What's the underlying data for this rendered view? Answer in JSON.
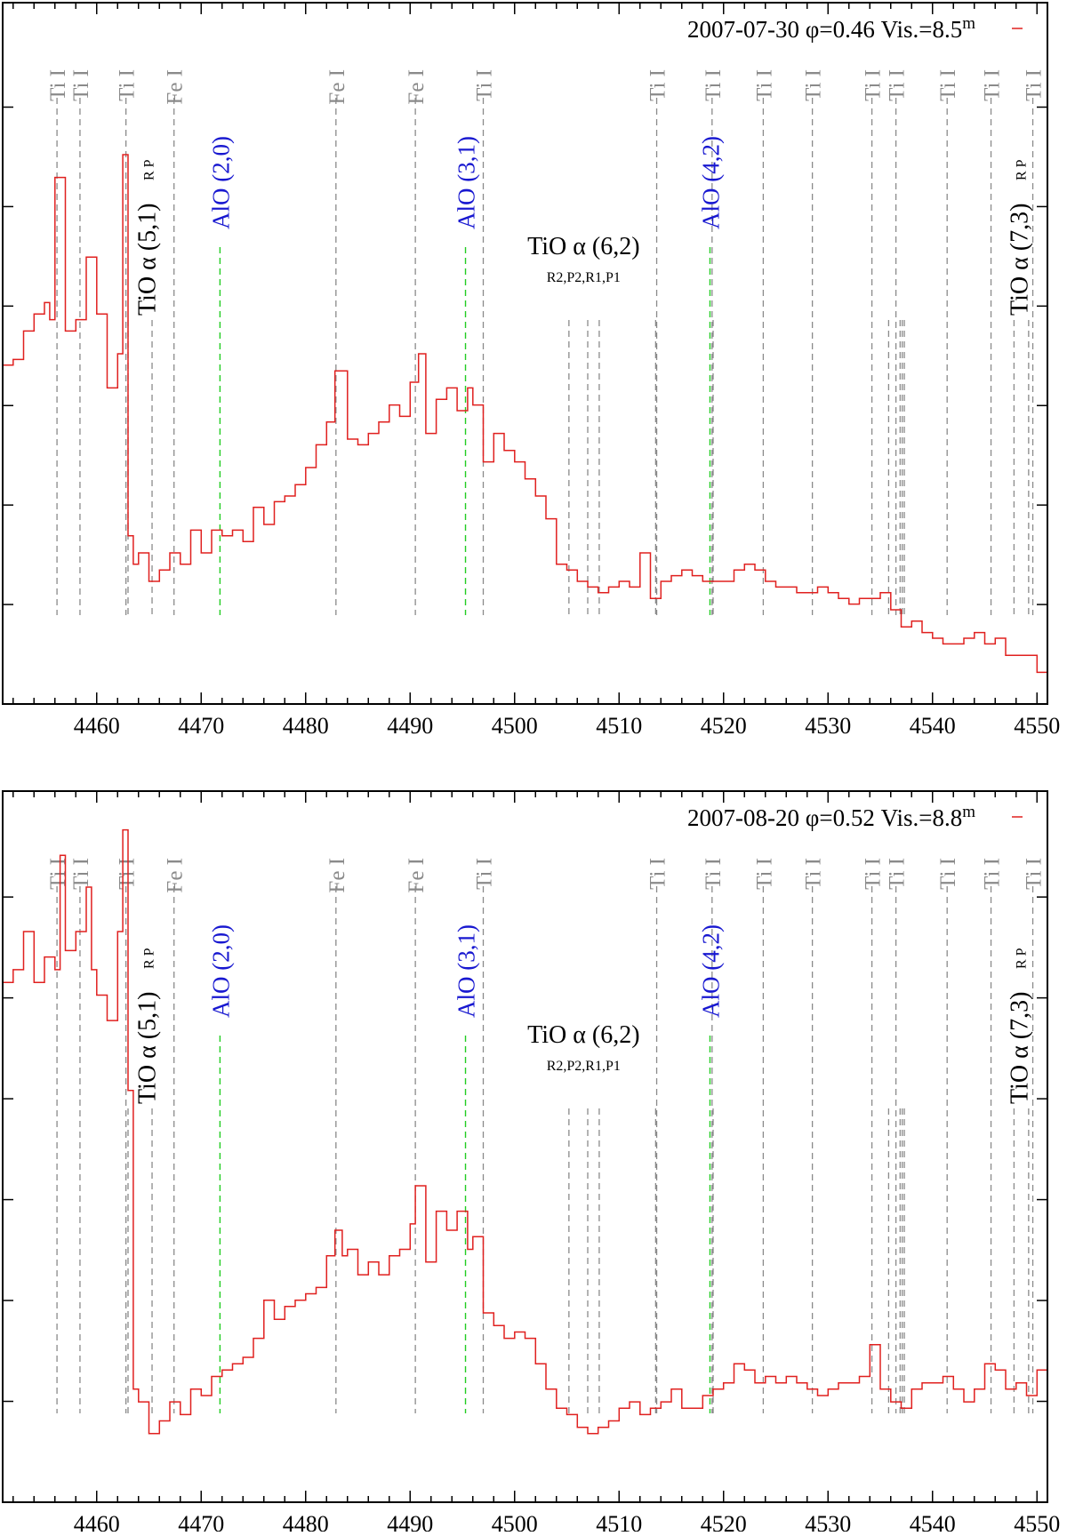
{
  "colors": {
    "spectrum": "#e0201f",
    "element_line": "#8a8a8a",
    "alo_line": "#22cc22",
    "alo_label": "#1818d0",
    "axis": "#000000"
  },
  "chart_data": [
    {
      "type": "line",
      "legend": {
        "date": "2007-07-30",
        "phase": "φ=0.46",
        "vis_prefix": "Vis.=8.5",
        "vis_sup": "m"
      },
      "xlim": [
        4451,
        4551
      ],
      "ylim": [
        0,
        1
      ],
      "x_ticks": [
        4460,
        4470,
        4480,
        4490,
        4500,
        4510,
        4520,
        4530,
        4540,
        4550
      ],
      "x_tick_labels": [
        "4460",
        "4470",
        "4480",
        "4490",
        "4500",
        "4510",
        "4520",
        "4530",
        "4540",
        "4550"
      ],
      "series": [
        {
          "name": "2007-07-30 φ=0.46 Vis.=8.5m",
          "x": [
            4451,
            4452,
            4453,
            4454,
            4455,
            4455.5,
            4456,
            4457,
            4458,
            4459,
            4460,
            4461,
            4462,
            4462.5,
            4463,
            4463.5,
            4464,
            4465,
            4466,
            4467,
            4468,
            4469,
            4470,
            4471,
            4472,
            4473,
            4474,
            4475,
            4476,
            4477,
            4478,
            4479,
            4480,
            4481,
            4482,
            4482.8,
            4484,
            4485,
            4486,
            4487,
            4488,
            4489,
            4490,
            4490.8,
            4491.5,
            4492.5,
            4493.5,
            4494.5,
            4495.5,
            4496,
            4497,
            4498,
            4499,
            4500,
            4501,
            4502,
            4503,
            4504,
            4505,
            4506,
            4507,
            4508,
            4509,
            4510,
            4511,
            4512,
            4513,
            4514,
            4515,
            4516,
            4517,
            4518,
            4519,
            4520,
            4521,
            4522,
            4523,
            4524,
            4525,
            4526,
            4527,
            4528,
            4529,
            4530,
            4531,
            4532,
            4533,
            4534,
            4535,
            4536,
            4537,
            4538,
            4539,
            4540,
            4541,
            4542,
            4543,
            4544,
            4545,
            4546,
            4547,
            4548,
            4549,
            4550,
            4551
          ],
          "values": [
            0.53,
            0.54,
            0.59,
            0.62,
            0.64,
            0.61,
            0.86,
            0.59,
            0.61,
            0.72,
            0.62,
            0.49,
            0.55,
            0.9,
            0.23,
            0.18,
            0.2,
            0.15,
            0.17,
            0.2,
            0.18,
            0.24,
            0.2,
            0.24,
            0.23,
            0.24,
            0.22,
            0.28,
            0.25,
            0.29,
            0.3,
            0.32,
            0.35,
            0.39,
            0.43,
            0.52,
            0.4,
            0.39,
            0.41,
            0.43,
            0.46,
            0.44,
            0.5,
            0.55,
            0.41,
            0.47,
            0.49,
            0.45,
            0.49,
            0.46,
            0.36,
            0.41,
            0.38,
            0.36,
            0.33,
            0.3,
            0.26,
            0.18,
            0.17,
            0.15,
            0.14,
            0.13,
            0.14,
            0.15,
            0.14,
            0.2,
            0.12,
            0.15,
            0.16,
            0.17,
            0.16,
            0.15,
            0.15,
            0.15,
            0.17,
            0.18,
            0.17,
            0.15,
            0.14,
            0.14,
            0.13,
            0.13,
            0.14,
            0.13,
            0.12,
            0.11,
            0.12,
            0.12,
            0.13,
            0.1,
            0.07,
            0.08,
            0.06,
            0.05,
            0.04,
            0.04,
            0.05,
            0.06,
            0.04,
            0.05,
            0.02,
            0.02,
            0.02,
            -0.01,
            0.0
          ]
        }
      ],
      "element_lines": [
        {
          "x": 4456.2,
          "label": "Ti I"
        },
        {
          "x": 4458.4,
          "label": "Ti I"
        },
        {
          "x": 4462.8,
          "label": "Ti I"
        },
        {
          "x": 4467.4,
          "label": "Fe I"
        },
        {
          "x": 4482.9,
          "label": "Fe I"
        },
        {
          "x": 4490.5,
          "label": "Fe I"
        },
        {
          "x": 4497,
          "label": "Ti I"
        },
        {
          "x": 4513.6,
          "label": "Ti I"
        },
        {
          "x": 4518.9,
          "label": "Ti I"
        },
        {
          "x": 4523.8,
          "label": "Ti I"
        },
        {
          "x": 4528.5,
          "label": "Ti I"
        },
        {
          "x": 4534.2,
          "label": "Ti I"
        },
        {
          "x": 4536.5,
          "label": "Ti I"
        },
        {
          "x": 4541.4,
          "label": "Ti I"
        },
        {
          "x": 4545.6,
          "label": "Ti I"
        },
        {
          "x": 4549.6,
          "label": "Ti I"
        }
      ],
      "extra_lines": [
        4463,
        4465.3,
        4505.2,
        4507,
        4508.1,
        4513.5,
        4519,
        4535.8,
        4536.9,
        4537.1,
        4537.3,
        4547.8,
        4549.2
      ],
      "alo_bands": [
        {
          "x": 4471.8,
          "label": "AlO (2,0)"
        },
        {
          "x": 4495.3,
          "label": "AlO (3,1)"
        },
        {
          "x": 4518.7,
          "label": "AlO (4,2)"
        }
      ],
      "tio_bands": {
        "left": {
          "label": "TiO α (5,1)",
          "branches": "R P"
        },
        "middle": {
          "label": "TiO α (6,2)",
          "branches": "R2,P2,R1,P1"
        },
        "right": {
          "label": "TiO α (7,3)",
          "branches": "R P"
        }
      }
    },
    {
      "type": "line",
      "legend": {
        "date": "2007-08-20",
        "phase": "φ=0.52",
        "vis_prefix": "Vis.=8.8",
        "vis_sup": "m"
      },
      "xlim": [
        4451,
        4551
      ],
      "ylim": [
        0,
        1
      ],
      "x_ticks": [
        4460,
        4470,
        4480,
        4490,
        4500,
        4510,
        4520,
        4530,
        4540,
        4550
      ],
      "x_tick_labels": [
        "4460",
        "4470",
        "4480",
        "4490",
        "4500",
        "4510",
        "4520",
        "4530",
        "4540",
        "4550"
      ],
      "series": [
        {
          "name": "2007-08-20 φ=0.52 Vis.=8.8m",
          "x": [
            4451,
            4452,
            4453,
            4454,
            4455,
            4456,
            4456.5,
            4457,
            4458,
            4459,
            4459.5,
            4460,
            4461,
            4462,
            4462.5,
            4463,
            4463.5,
            4464,
            4465,
            4466,
            4467,
            4468,
            4469,
            4470,
            4471,
            4472,
            4473,
            4474,
            4475,
            4476,
            4477,
            4478,
            4479,
            4480,
            4481,
            4482,
            4482.8,
            4483.5,
            4484,
            4485,
            4486,
            4487,
            4488,
            4489,
            4490,
            4490.5,
            4491.5,
            4492.5,
            4493.5,
            4494.5,
            4495.5,
            4496,
            4497,
            4498,
            4499,
            4500,
            4501,
            4502,
            4503,
            4504,
            4505,
            4506,
            4507,
            4508,
            4509,
            4510,
            4511,
            4512,
            4513,
            4514,
            4515,
            4516,
            4517,
            4518,
            4519,
            4520,
            4521,
            4522,
            4523,
            4524,
            4525,
            4526,
            4527,
            4528,
            4529,
            4530,
            4531,
            4532,
            4533,
            4534,
            4535,
            4536,
            4537,
            4538,
            4539,
            4540,
            4541,
            4542,
            4543,
            4544,
            4545,
            4546,
            4547,
            4548,
            4549,
            4550,
            4551
          ],
          "values": [
            0.72,
            0.74,
            0.8,
            0.72,
            0.76,
            0.74,
            0.92,
            0.77,
            0.8,
            0.87,
            0.74,
            0.7,
            0.66,
            0.8,
            0.96,
            0.55,
            0.08,
            0.06,
            0.01,
            0.03,
            0.06,
            0.04,
            0.08,
            0.07,
            0.1,
            0.11,
            0.12,
            0.13,
            0.16,
            0.22,
            0.19,
            0.21,
            0.22,
            0.23,
            0.24,
            0.29,
            0.33,
            0.29,
            0.3,
            0.26,
            0.28,
            0.26,
            0.29,
            0.3,
            0.34,
            0.4,
            0.28,
            0.36,
            0.33,
            0.36,
            0.3,
            0.32,
            0.2,
            0.18,
            0.16,
            0.17,
            0.16,
            0.12,
            0.08,
            0.05,
            0.04,
            0.02,
            0.01,
            0.02,
            0.03,
            0.05,
            0.06,
            0.04,
            0.05,
            0.06,
            0.08,
            0.05,
            0.05,
            0.07,
            0.08,
            0.09,
            0.12,
            0.11,
            0.09,
            0.1,
            0.09,
            0.1,
            0.09,
            0.08,
            0.07,
            0.08,
            0.09,
            0.09,
            0.1,
            0.15,
            0.08,
            0.06,
            0.05,
            0.08,
            0.09,
            0.09,
            0.1,
            0.08,
            0.06,
            0.08,
            0.12,
            0.11,
            0.08,
            0.09,
            0.07,
            0.11,
            0.08
          ]
        }
      ],
      "element_lines": [
        {
          "x": 4456.2,
          "label": "Ti I"
        },
        {
          "x": 4458.4,
          "label": "Ti I"
        },
        {
          "x": 4462.8,
          "label": "Ti I"
        },
        {
          "x": 4467.4,
          "label": "Fe I"
        },
        {
          "x": 4482.9,
          "label": "Fe I"
        },
        {
          "x": 4490.5,
          "label": "Fe I"
        },
        {
          "x": 4497,
          "label": "Ti I"
        },
        {
          "x": 4513.6,
          "label": "Ti I"
        },
        {
          "x": 4518.9,
          "label": "Ti I"
        },
        {
          "x": 4523.8,
          "label": "Ti I"
        },
        {
          "x": 4528.5,
          "label": "Ti I"
        },
        {
          "x": 4534.2,
          "label": "Ti I"
        },
        {
          "x": 4536.5,
          "label": "Ti I"
        },
        {
          "x": 4541.4,
          "label": "Ti I"
        },
        {
          "x": 4545.6,
          "label": "Ti I"
        },
        {
          "x": 4549.6,
          "label": "Ti I"
        }
      ],
      "extra_lines": [
        4463,
        4465.3,
        4505.2,
        4507,
        4508.1,
        4513.5,
        4519,
        4535.8,
        4536.9,
        4537.1,
        4537.3,
        4547.8,
        4549.2
      ],
      "alo_bands": [
        {
          "x": 4471.8,
          "label": "AlO (2,0)"
        },
        {
          "x": 4495.3,
          "label": "AlO (3,1)"
        },
        {
          "x": 4518.7,
          "label": "AlO (4,2)"
        }
      ],
      "tio_bands": {
        "left": {
          "label": "TiO α (5,1)",
          "branches": "R P"
        },
        "middle": {
          "label": "TiO α (6,2)",
          "branches": "R2,P2,R1,P1"
        },
        "right": {
          "label": "TiO α (7,3)",
          "branches": "R P"
        }
      }
    }
  ]
}
